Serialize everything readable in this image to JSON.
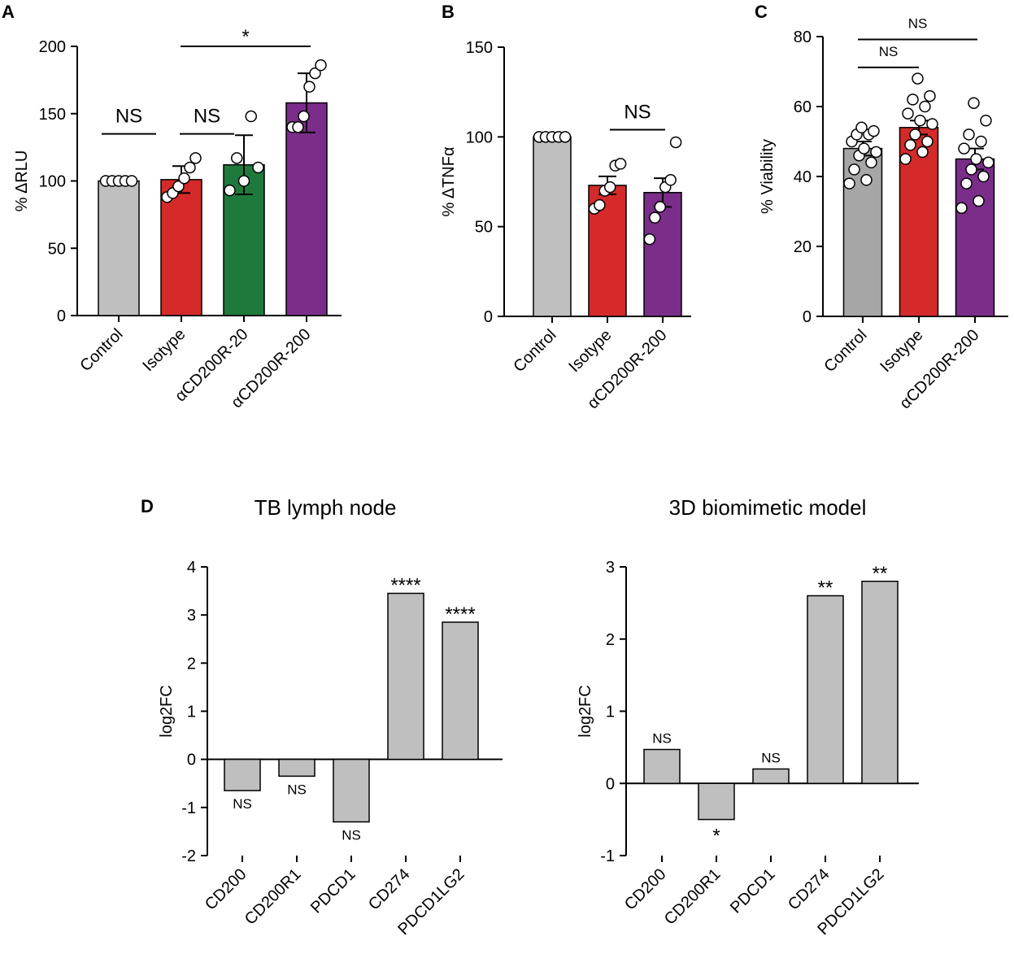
{
  "chart_data": [
    {
      "panel": "A",
      "type": "bar",
      "categories": [
        "Control",
        "Isotype",
        "αCD200R-20",
        "αCD200R-200"
      ],
      "colors": [
        "#bfbfbf",
        "#d42a2a",
        "#1e7a3c",
        "#7b2d8a"
      ],
      "values": [
        100,
        101,
        112,
        158
      ],
      "errors": [
        0,
        10,
        22,
        22
      ],
      "points": [
        [
          100,
          100,
          100,
          100,
          100
        ],
        [
          88,
          91,
          96,
          102,
          110,
          117
        ],
        [
          93,
          100,
          110,
          117,
          148
        ],
        [
          140,
          140,
          148,
          170,
          180,
          186
        ]
      ],
      "ylabel": "% ΔRLU",
      "ylim": [
        0,
        200
      ],
      "yticks": [
        0,
        50,
        100,
        150,
        200
      ],
      "annotations": [
        {
          "text": "NS",
          "from": 0,
          "to": 0,
          "y": 155,
          "line_y": 135
        },
        {
          "text": "NS",
          "from": 1,
          "to": 1,
          "y": 155,
          "line_y": 135
        },
        {
          "text": "*",
          "from": 1,
          "to": 3,
          "y": 205,
          "line_y": 200
        }
      ]
    },
    {
      "panel": "B",
      "type": "bar",
      "categories": [
        "Control",
        "Isotype",
        "αCD200R-200"
      ],
      "colors": [
        "#bfbfbf",
        "#d42a2a",
        "#7b2d8a"
      ],
      "values": [
        100,
        73,
        69
      ],
      "errors": [
        0,
        5,
        8
      ],
      "points": [
        [
          100,
          100,
          100,
          100,
          100
        ],
        [
          60,
          62,
          70,
          72,
          84,
          85
        ],
        [
          43,
          55,
          61,
          72,
          76,
          97
        ]
      ],
      "ylabel": "% ΔTNFα",
      "ylim": [
        0,
        150
      ],
      "yticks": [
        0,
        50,
        100,
        150
      ],
      "annotations": [
        {
          "text": "NS",
          "from": 1,
          "to": 2,
          "y": 110,
          "line_y": 104
        }
      ]
    },
    {
      "panel": "C",
      "type": "bar",
      "categories": [
        "Control",
        "Isotype",
        "αCD200R-200"
      ],
      "colors": [
        "#a6a6a6",
        "#d42a2a",
        "#7b2d8a"
      ],
      "values": [
        48,
        54,
        45
      ],
      "errors": [
        2,
        2,
        3
      ],
      "points": [
        [
          38,
          39,
          42,
          44,
          46,
          47,
          48,
          50,
          52,
          52,
          53,
          54
        ],
        [
          45,
          47,
          49,
          50,
          52,
          55,
          56,
          58,
          60,
          62,
          63,
          68
        ],
        [
          31,
          33,
          38,
          40,
          42,
          44,
          45,
          48,
          50,
          52,
          56,
          61
        ]
      ],
      "ylabel": "% Viability",
      "ylim": [
        0,
        80
      ],
      "yticks": [
        0,
        20,
        40,
        60,
        80
      ],
      "annotations": [
        {
          "text": "NS",
          "from": 0,
          "to": 1,
          "y": 72.3,
          "line_y": 71.2
        },
        {
          "text": "NS",
          "from": 0,
          "to": 2,
          "y": 80,
          "line_y": 79.2
        }
      ]
    },
    {
      "panel": "D",
      "title": "TB lymph node",
      "type": "bar",
      "categories": [
        "CD200",
        "CD200R1",
        "PDCD1",
        "CD274",
        "PDCD1LG2"
      ],
      "values": [
        -0.65,
        -0.35,
        -1.3,
        3.45,
        2.85
      ],
      "significance": [
        "NS",
        "NS",
        "NS",
        "****",
        "****"
      ],
      "ylabel": "log2FC",
      "ylim": [
        -2,
        4
      ],
      "yticks": [
        -2,
        -1,
        0,
        1,
        2,
        3,
        4
      ],
      "bar_color": "#bfbfbf"
    },
    {
      "panel": "",
      "title": "3D biomimetic model",
      "type": "bar",
      "categories": [
        "CD200",
        "CD200R1",
        "PDCD1",
        "CD274",
        "PDCD1LG2"
      ],
      "values": [
        0.47,
        -0.5,
        0.2,
        2.6,
        2.8
      ],
      "significance": [
        "NS",
        "*",
        "NS",
        "**",
        "**"
      ],
      "ylabel": "log2FC",
      "ylim": [
        -1,
        3
      ],
      "yticks": [
        -1,
        0,
        1,
        2,
        3
      ],
      "bar_color": "#bfbfbf"
    }
  ]
}
